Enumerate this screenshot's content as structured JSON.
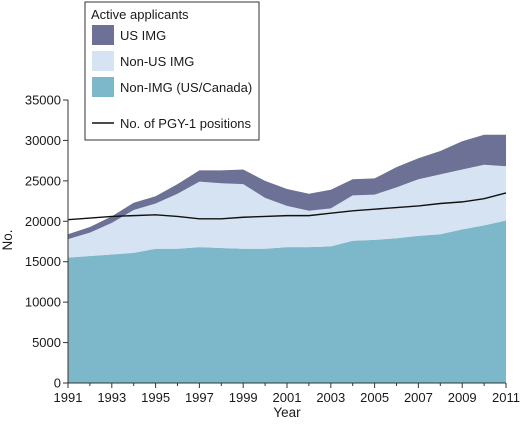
{
  "chart_data": {
    "type": "area",
    "xlabel": "Year",
    "ylabel": "No.",
    "xlim": [
      1991,
      2011
    ],
    "ylim": [
      0,
      35000
    ],
    "x_ticks": [
      1991,
      1993,
      1995,
      1997,
      1999,
      2001,
      2003,
      2005,
      2007,
      2009,
      2011
    ],
    "y_ticks": [
      0,
      5000,
      10000,
      15000,
      20000,
      25000,
      30000,
      35000
    ],
    "grid": false,
    "legend": {
      "title": "Active applicants",
      "placement": "top-left"
    },
    "x": [
      1991,
      1992,
      1993,
      1994,
      1995,
      1996,
      1997,
      1998,
      1999,
      2000,
      2001,
      2002,
      2003,
      2004,
      2005,
      2006,
      2007,
      2008,
      2009,
      2010,
      2011
    ],
    "series": [
      {
        "name": "Non-IMG (US/Canada)",
        "kind": "stacked-area",
        "color": "#7db8ca",
        "values": [
          15500,
          15700,
          15900,
          16100,
          16600,
          16600,
          16800,
          16700,
          16600,
          16600,
          16800,
          16800,
          16900,
          17600,
          17700,
          17900,
          18200,
          18400,
          19000,
          19500,
          20100
        ]
      },
      {
        "name": "Non-US IMG",
        "kind": "stacked-area",
        "color": "#d5e3f3",
        "values": [
          2300,
          2900,
          3900,
          5300,
          5600,
          6800,
          8100,
          8000,
          8000,
          6300,
          5100,
          4500,
          4700,
          5600,
          5600,
          6300,
          7000,
          7400,
          7400,
          7500,
          6700
        ]
      },
      {
        "name": "US IMG",
        "kind": "stacked-area",
        "color": "#6d7195",
        "values": [
          600,
          700,
          800,
          900,
          900,
          1200,
          1400,
          1600,
          1800,
          2100,
          2100,
          2100,
          2300,
          2000,
          2000,
          2500,
          2600,
          2900,
          3500,
          3700,
          3900
        ]
      },
      {
        "name": "No. of PGY-1 positions",
        "kind": "line",
        "color": "#111111",
        "values": [
          20200,
          20400,
          20600,
          20700,
          20800,
          20600,
          20300,
          20300,
          20500,
          20600,
          20700,
          20700,
          21000,
          21300,
          21500,
          21700,
          21900,
          22200,
          22400,
          22800,
          23500
        ]
      }
    ]
  }
}
